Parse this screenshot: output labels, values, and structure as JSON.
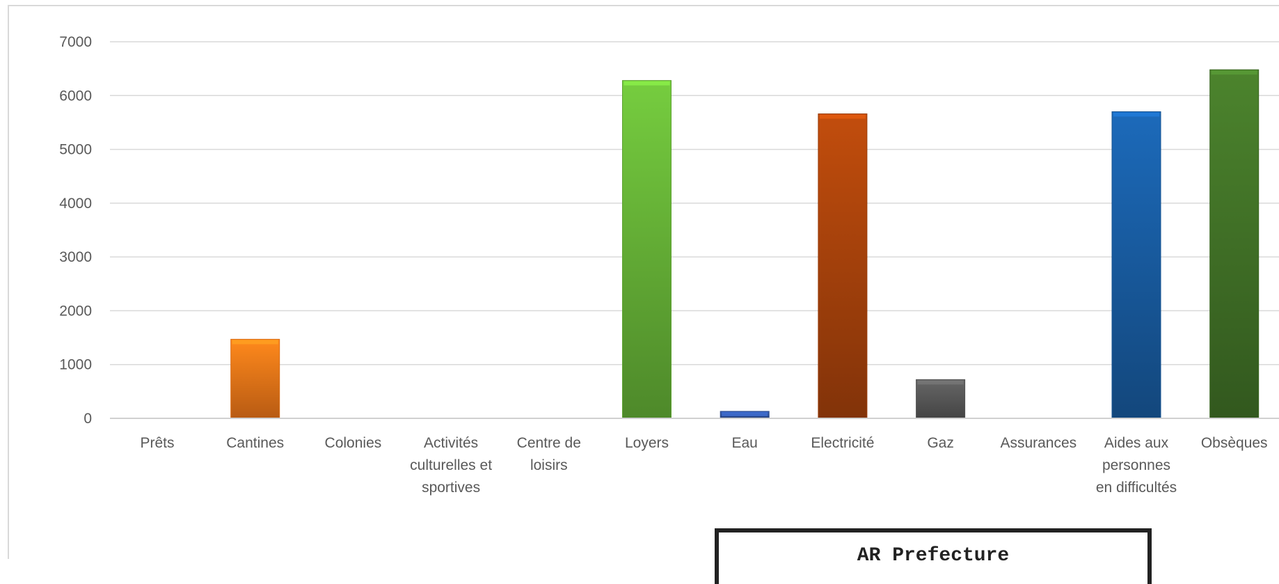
{
  "chart_data": {
    "type": "bar",
    "title": "",
    "xlabel": "",
    "ylabel": "",
    "ylim": [
      0,
      7000
    ],
    "yticks": [
      0,
      1000,
      2000,
      3000,
      4000,
      5000,
      6000,
      7000
    ],
    "grid": true,
    "legend": "none",
    "categories": [
      [
        "Prêts"
      ],
      [
        "Cantines"
      ],
      [
        "Colonies"
      ],
      [
        "Activités",
        "culturelles et",
        "sportives"
      ],
      [
        "Centre de",
        "loisirs"
      ],
      [
        "Loyers"
      ],
      [
        "Eau"
      ],
      [
        "Electricité"
      ],
      [
        "Gaz"
      ],
      [
        "Assurances"
      ],
      [
        "Aides aux",
        "personnes",
        "en difficultés"
      ],
      [
        "Obsèques"
      ]
    ],
    "values": [
      0,
      1470,
      0,
      0,
      0,
      6280,
      130,
      5660,
      720,
      0,
      5700,
      6480
    ],
    "colors": [
      "#ED7D31",
      "#FF7F1A",
      "#A5A5A5",
      "#FFC000",
      "#5B9BD5",
      "#6DBE3A",
      "#3358A8",
      "#B4470C",
      "#5E5E5E",
      "#C9A000",
      "#1A62AC",
      "#467A2A"
    ]
  },
  "stamp": {
    "title": "AR Prefecture"
  }
}
